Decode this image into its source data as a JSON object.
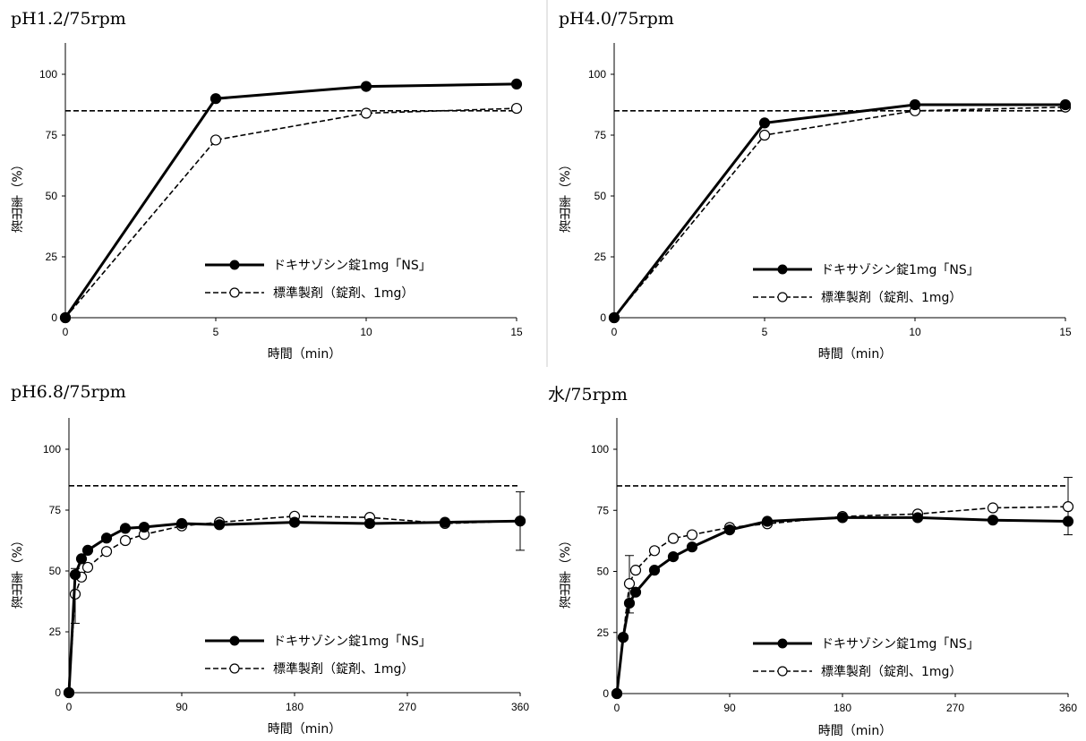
{
  "chart_data": [
    {
      "type": "line",
      "title": "pH1.2/75rpm",
      "xlabel": "時間（min）",
      "ylabel": "溶出率（%）",
      "xlim": [
        0,
        15
      ],
      "ylim": [
        0,
        100
      ],
      "xticks": [
        0,
        5,
        10,
        15
      ],
      "yticks": [
        0,
        25,
        50,
        75,
        100
      ],
      "reference_line": 85,
      "legend_position": "bottom-right",
      "series": [
        {
          "name": "ドキサゾシン錠1mg「NS」",
          "style": "solid-filled",
          "x": [
            0,
            5,
            10,
            15
          ],
          "y": [
            0,
            90,
            95,
            96
          ]
        },
        {
          "name": "標準製剤（錠剤、1mg）",
          "style": "dashed-open",
          "x": [
            0,
            5,
            10,
            15
          ],
          "y": [
            0,
            73,
            84,
            86
          ]
        }
      ],
      "error_bars": []
    },
    {
      "type": "line",
      "title": "pH4.0/75rpm",
      "xlabel": "時間（min）",
      "ylabel": "溶出率（%）",
      "xlim": [
        0,
        15
      ],
      "ylim": [
        0,
        100
      ],
      "xticks": [
        0,
        5,
        10,
        15
      ],
      "yticks": [
        0,
        25,
        50,
        75,
        100
      ],
      "reference_line": 85,
      "legend_position": "bottom-right",
      "series": [
        {
          "name": "ドキサゾシン錠1mg「NS」",
          "style": "solid-filled",
          "x": [
            0,
            5,
            10,
            15
          ],
          "y": [
            0,
            80,
            87.5,
            87.5
          ]
        },
        {
          "name": "標準製剤（錠剤、1mg）",
          "style": "dashed-open",
          "x": [
            0,
            5,
            10,
            15
          ],
          "y": [
            0,
            75,
            85,
            86.5
          ]
        }
      ],
      "error_bars": []
    },
    {
      "type": "line",
      "title": "pH6.8/75rpm",
      "xlabel": "時間（min）",
      "ylabel": "溶出率（%）",
      "xlim": [
        0,
        360
      ],
      "ylim": [
        0,
        100
      ],
      "xticks": [
        0,
        90,
        180,
        270,
        360
      ],
      "yticks": [
        0,
        25,
        50,
        75,
        100
      ],
      "reference_line": 85,
      "legend_position": "bottom-right",
      "series": [
        {
          "name": "ドキサゾシン錠1mg「NS」",
          "style": "solid-filled",
          "x": [
            0,
            5,
            10,
            15,
            30,
            45,
            60,
            90,
            120,
            180,
            240,
            300,
            360
          ],
          "y": [
            0,
            48.5,
            55,
            58.5,
            63.5,
            67.5,
            68,
            69.5,
            69,
            70,
            69.5,
            70,
            70.5
          ]
        },
        {
          "name": "標準製剤（錠剤、1mg）",
          "style": "dashed-open",
          "x": [
            0,
            5,
            10,
            15,
            30,
            45,
            60,
            90,
            120,
            180,
            240,
            300,
            360
          ],
          "y": [
            0,
            40.5,
            47.5,
            51.5,
            58,
            62.5,
            65,
            68.5,
            70,
            72.5,
            72,
            69.5,
            70.5
          ]
        }
      ],
      "error_bars": [
        {
          "x": 5,
          "low": 28.5,
          "high": 51
        },
        {
          "x": 360,
          "low": 58.5,
          "high": 82.5
        }
      ]
    },
    {
      "type": "line",
      "title": "水/75rpm",
      "xlabel": "時間（min）",
      "ylabel": "溶出率（%）",
      "xlim": [
        0,
        360
      ],
      "ylim": [
        0,
        100
      ],
      "xticks": [
        0,
        90,
        180,
        270,
        360
      ],
      "yticks": [
        0,
        25,
        50,
        75,
        100
      ],
      "reference_line": 85,
      "legend_position": "bottom-right",
      "series": [
        {
          "name": "ドキサゾシン錠1mg「NS」",
          "style": "solid-filled",
          "x": [
            0,
            5,
            10,
            15,
            30,
            45,
            60,
            90,
            120,
            180,
            240,
            300,
            360
          ],
          "y": [
            0,
            23,
            37,
            41.5,
            50.5,
            56,
            60,
            67,
            70.5,
            72,
            72,
            71,
            70.5
          ]
        },
        {
          "name": "標準製剤（錠剤、1mg）",
          "style": "dashed-open",
          "x": [
            0,
            5,
            10,
            15,
            30,
            45,
            60,
            90,
            120,
            180,
            240,
            300,
            360
          ],
          "y": [
            0,
            23,
            45,
            50.5,
            58.5,
            63.5,
            65,
            68,
            69.5,
            72.5,
            73.5,
            76,
            76.5
          ]
        }
      ],
      "error_bars": [
        {
          "x": 10,
          "low": 33,
          "high": 56.5
        },
        {
          "x": 360,
          "low": 65,
          "high": 88.5
        }
      ]
    }
  ]
}
